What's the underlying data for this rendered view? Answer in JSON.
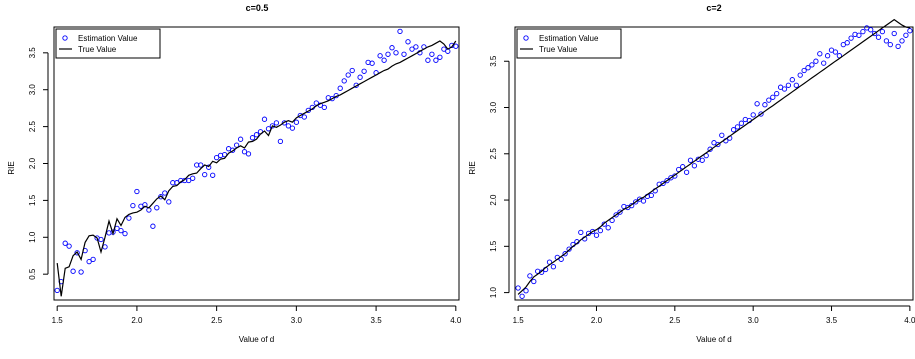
{
  "colors": {
    "estimate": "#0000ff",
    "truth": "#000000"
  },
  "chart_data": [
    {
      "type": "scatter",
      "title": "c=0.5",
      "xlabel": "Value of d",
      "ylabel": "RIE",
      "xlim": [
        1.48,
        4.02
      ],
      "ylim": [
        0.15,
        3.85
      ],
      "xticks": [
        1.5,
        2.0,
        2.5,
        3.0,
        3.5,
        4.0
      ],
      "xtick_labels": [
        "1.5",
        "2.0",
        "2.5",
        "3.0",
        "3.5",
        "4.0"
      ],
      "yticks": [
        0.5,
        1.0,
        1.5,
        2.0,
        2.5,
        3.0,
        3.5
      ],
      "ytick_labels": [
        "0.5",
        "1.0",
        "1.5",
        "2.0",
        "2.5",
        "3.0",
        "3.5"
      ],
      "legend_position": "top-left",
      "series": [
        {
          "name": "Estimation Value",
          "kind": "points",
          "x": [
            1.5,
            1.525,
            1.55,
            1.575,
            1.6,
            1.625,
            1.65,
            1.675,
            1.7,
            1.725,
            1.75,
            1.775,
            1.8,
            1.825,
            1.85,
            1.875,
            1.9,
            1.925,
            1.95,
            1.975,
            2.0,
            2.025,
            2.05,
            2.075,
            2.1,
            2.125,
            2.15,
            2.175,
            2.2,
            2.225,
            2.25,
            2.275,
            2.3,
            2.325,
            2.35,
            2.375,
            2.4,
            2.425,
            2.45,
            2.475,
            2.5,
            2.525,
            2.55,
            2.575,
            2.6,
            2.625,
            2.65,
            2.675,
            2.7,
            2.725,
            2.75,
            2.775,
            2.8,
            2.825,
            2.85,
            2.875,
            2.9,
            2.925,
            2.95,
            2.975,
            3.0,
            3.025,
            3.05,
            3.075,
            3.1,
            3.125,
            3.15,
            3.175,
            3.2,
            3.225,
            3.25,
            3.275,
            3.3,
            3.325,
            3.35,
            3.375,
            3.4,
            3.425,
            3.45,
            3.475,
            3.5,
            3.525,
            3.55,
            3.575,
            3.6,
            3.625,
            3.65,
            3.675,
            3.7,
            3.725,
            3.75,
            3.775,
            3.8,
            3.825,
            3.85,
            3.875,
            3.9,
            3.925,
            3.95,
            3.975,
            4.0
          ],
          "y": [
            0.28,
            0.4,
            0.92,
            0.88,
            0.54,
            0.79,
            0.53,
            0.82,
            0.67,
            0.7,
            0.99,
            0.97,
            0.87,
            1.06,
            1.07,
            1.12,
            1.09,
            1.05,
            1.26,
            1.43,
            1.62,
            1.42,
            1.44,
            1.37,
            1.15,
            1.4,
            1.55,
            1.6,
            1.48,
            1.74,
            1.74,
            1.77,
            1.77,
            1.77,
            1.8,
            1.98,
            1.98,
            1.85,
            1.95,
            1.84,
            2.08,
            2.11,
            2.12,
            2.2,
            2.18,
            2.25,
            2.33,
            2.16,
            2.13,
            2.35,
            2.39,
            2.43,
            2.6,
            2.47,
            2.51,
            2.55,
            2.3,
            2.55,
            2.51,
            2.48,
            2.56,
            2.65,
            2.63,
            2.72,
            2.76,
            2.82,
            2.79,
            2.76,
            2.89,
            2.88,
            2.92,
            3.02,
            3.12,
            3.2,
            3.26,
            3.06,
            3.17,
            3.25,
            3.37,
            3.36,
            3.23,
            3.46,
            3.4,
            3.48,
            3.57,
            3.5,
            3.79,
            3.48,
            3.65,
            3.55,
            3.58,
            3.5,
            3.58,
            3.4,
            3.48,
            3.4,
            3.44,
            3.55,
            3.52,
            3.6,
            3.59
          ]
        },
        {
          "name": "True Value",
          "kind": "line",
          "x": [
            1.5,
            1.525,
            1.55,
            1.575,
            1.6,
            1.625,
            1.65,
            1.675,
            1.7,
            1.725,
            1.75,
            1.775,
            1.8,
            1.825,
            1.85,
            1.875,
            1.9,
            1.925,
            1.95,
            1.975,
            2.0,
            2.025,
            2.05,
            2.075,
            2.1,
            2.125,
            2.15,
            2.175,
            2.2,
            2.225,
            2.25,
            2.275,
            2.3,
            2.325,
            2.35,
            2.375,
            2.4,
            2.425,
            2.45,
            2.475,
            2.5,
            2.525,
            2.55,
            2.575,
            2.6,
            2.625,
            2.65,
            2.675,
            2.7,
            2.725,
            2.75,
            2.775,
            2.8,
            2.825,
            2.85,
            2.875,
            2.9,
            2.925,
            2.95,
            2.975,
            3.0,
            3.025,
            3.05,
            3.075,
            3.1,
            3.125,
            3.15,
            3.175,
            3.2,
            3.225,
            3.25,
            3.275,
            3.3,
            3.325,
            3.35,
            3.375,
            3.4,
            3.425,
            3.45,
            3.475,
            3.5,
            3.525,
            3.55,
            3.575,
            3.6,
            3.625,
            3.65,
            3.675,
            3.7,
            3.725,
            3.75,
            3.775,
            3.8,
            3.825,
            3.85,
            3.875,
            3.9,
            3.925,
            3.95,
            3.975,
            4.0
          ],
          "y": [
            0.65,
            0.2,
            0.58,
            0.6,
            0.75,
            0.8,
            0.7,
            0.93,
            1.02,
            1.03,
            0.99,
            0.8,
            1.0,
            1.22,
            1.05,
            1.25,
            1.16,
            1.27,
            1.31,
            1.33,
            1.34,
            1.37,
            1.42,
            1.4,
            1.46,
            1.52,
            1.56,
            1.51,
            1.63,
            1.69,
            1.7,
            1.75,
            1.78,
            1.84,
            1.86,
            1.87,
            1.93,
            1.98,
            1.96,
            2.03,
            2.01,
            2.06,
            2.07,
            2.14,
            2.17,
            2.21,
            2.24,
            2.21,
            2.29,
            2.3,
            2.33,
            2.4,
            2.44,
            2.38,
            2.51,
            2.49,
            2.52,
            2.56,
            2.58,
            2.56,
            2.62,
            2.65,
            2.68,
            2.71,
            2.74,
            2.78,
            2.81,
            2.83,
            2.85,
            2.88,
            2.91,
            2.93,
            2.96,
            2.99,
            3.02,
            3.05,
            3.08,
            3.11,
            3.14,
            3.17,
            3.2,
            3.23,
            3.26,
            3.28,
            3.32,
            3.35,
            3.37,
            3.4,
            3.43,
            3.46,
            3.49,
            3.52,
            3.55,
            3.58,
            3.6,
            3.63,
            3.66,
            3.62,
            3.55,
            3.58,
            3.66
          ]
        }
      ]
    },
    {
      "type": "scatter",
      "title": "c=2",
      "xlabel": "Value of d",
      "ylabel": "RIE",
      "xlim": [
        1.48,
        4.02
      ],
      "ylim": [
        0.92,
        3.87
      ],
      "xticks": [
        1.5,
        2.0,
        2.5,
        3.0,
        3.5,
        4.0
      ],
      "xtick_labels": [
        "1.5",
        "2.0",
        "2.5",
        "3.0",
        "3.5",
        "4.0"
      ],
      "yticks": [
        1.0,
        1.5,
        2.0,
        2.5,
        3.0,
        3.5
      ],
      "ytick_labels": [
        "1.0",
        "1.5",
        "2.0",
        "2.5",
        "3.0",
        "3.5"
      ],
      "legend_position": "top-left",
      "series": [
        {
          "name": "Estimation Value",
          "kind": "points",
          "x": [
            1.5,
            1.525,
            1.55,
            1.575,
            1.6,
            1.625,
            1.65,
            1.675,
            1.7,
            1.725,
            1.75,
            1.775,
            1.8,
            1.825,
            1.85,
            1.875,
            1.9,
            1.925,
            1.95,
            1.975,
            2.0,
            2.025,
            2.05,
            2.075,
            2.1,
            2.125,
            2.15,
            2.175,
            2.2,
            2.225,
            2.25,
            2.275,
            2.3,
            2.325,
            2.35,
            2.375,
            2.4,
            2.425,
            2.45,
            2.475,
            2.5,
            2.525,
            2.55,
            2.575,
            2.6,
            2.625,
            2.65,
            2.675,
            2.7,
            2.725,
            2.75,
            2.775,
            2.8,
            2.825,
            2.85,
            2.875,
            2.9,
            2.925,
            2.95,
            2.975,
            3.0,
            3.025,
            3.05,
            3.075,
            3.1,
            3.125,
            3.15,
            3.175,
            3.2,
            3.225,
            3.25,
            3.275,
            3.3,
            3.325,
            3.35,
            3.375,
            3.4,
            3.425,
            3.45,
            3.475,
            3.5,
            3.525,
            3.55,
            3.575,
            3.6,
            3.625,
            3.65,
            3.675,
            3.7,
            3.725,
            3.75,
            3.775,
            3.8,
            3.825,
            3.85,
            3.875,
            3.9,
            3.925,
            3.95,
            3.975,
            4.0
          ],
          "y": [
            1.05,
            0.96,
            1.02,
            1.18,
            1.12,
            1.23,
            1.22,
            1.25,
            1.33,
            1.28,
            1.38,
            1.36,
            1.42,
            1.47,
            1.52,
            1.55,
            1.65,
            1.58,
            1.64,
            1.66,
            1.62,
            1.67,
            1.74,
            1.7,
            1.78,
            1.84,
            1.87,
            1.93,
            1.92,
            1.94,
            1.98,
            2.01,
            1.99,
            2.04,
            2.05,
            2.1,
            2.17,
            2.18,
            2.21,
            2.24,
            2.26,
            2.33,
            2.36,
            2.3,
            2.43,
            2.37,
            2.44,
            2.43,
            2.48,
            2.55,
            2.62,
            2.6,
            2.7,
            2.64,
            2.67,
            2.76,
            2.79,
            2.83,
            2.87,
            2.86,
            2.92,
            3.04,
            2.93,
            3.03,
            3.08,
            3.11,
            3.15,
            3.22,
            3.2,
            3.24,
            3.3,
            3.24,
            3.35,
            3.4,
            3.43,
            3.46,
            3.5,
            3.58,
            3.48,
            3.56,
            3.62,
            3.6,
            3.56,
            3.68,
            3.7,
            3.75,
            3.79,
            3.78,
            3.82,
            3.86,
            3.84,
            3.8,
            3.76,
            3.82,
            3.72,
            3.68,
            3.8,
            3.66,
            3.72,
            3.78,
            3.83
          ]
        },
        {
          "name": "True Value",
          "kind": "line",
          "x": [
            1.5,
            1.525,
            1.55,
            1.575,
            1.6,
            1.625,
            1.65,
            1.675,
            1.7,
            1.725,
            1.75,
            1.775,
            1.8,
            1.825,
            1.85,
            1.875,
            1.9,
            1.925,
            1.95,
            1.975,
            2.0,
            2.025,
            2.05,
            2.075,
            2.1,
            2.125,
            2.15,
            2.175,
            2.2,
            2.225,
            2.25,
            2.275,
            2.3,
            2.325,
            2.35,
            2.375,
            2.4,
            2.425,
            2.45,
            2.475,
            2.5,
            2.525,
            2.55,
            2.575,
            2.6,
            2.625,
            2.65,
            2.675,
            2.7,
            2.725,
            2.75,
            2.775,
            2.8,
            2.825,
            2.85,
            2.875,
            2.9,
            2.925,
            2.95,
            2.975,
            3.0,
            3.025,
            3.05,
            3.075,
            3.1,
            3.125,
            3.15,
            3.175,
            3.2,
            3.225,
            3.25,
            3.275,
            3.3,
            3.325,
            3.35,
            3.375,
            3.4,
            3.425,
            3.45,
            3.475,
            3.5,
            3.525,
            3.55,
            3.575,
            3.6,
            3.625,
            3.65,
            3.675,
            3.7,
            3.725,
            3.75,
            3.775,
            3.8,
            3.825,
            3.85,
            3.875,
            3.9,
            3.925,
            3.95,
            3.975,
            4.0
          ],
          "y": [
            0.98,
            1.02,
            1.06,
            1.12,
            1.17,
            1.2,
            1.23,
            1.27,
            1.3,
            1.33,
            1.36,
            1.39,
            1.42,
            1.46,
            1.5,
            1.53,
            1.57,
            1.6,
            1.63,
            1.66,
            1.68,
            1.71,
            1.75,
            1.78,
            1.81,
            1.84,
            1.87,
            1.9,
            1.92,
            1.95,
            1.98,
            2.01,
            2.03,
            2.06,
            2.09,
            2.12,
            2.15,
            2.18,
            2.21,
            2.24,
            2.27,
            2.3,
            2.33,
            2.36,
            2.39,
            2.42,
            2.45,
            2.48,
            2.51,
            2.54,
            2.57,
            2.6,
            2.63,
            2.66,
            2.69,
            2.72,
            2.75,
            2.78,
            2.81,
            2.84,
            2.87,
            2.9,
            2.93,
            2.96,
            2.99,
            3.02,
            3.05,
            3.08,
            3.11,
            3.14,
            3.17,
            3.2,
            3.23,
            3.26,
            3.29,
            3.32,
            3.35,
            3.38,
            3.41,
            3.44,
            3.47,
            3.5,
            3.53,
            3.56,
            3.59,
            3.62,
            3.65,
            3.68,
            3.71,
            3.74,
            3.77,
            3.8,
            3.83,
            3.86,
            3.89,
            3.92,
            3.95,
            3.92,
            3.89,
            3.87,
            3.86
          ]
        }
      ]
    }
  ]
}
